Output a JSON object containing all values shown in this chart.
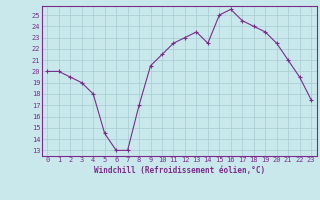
{
  "x": [
    0,
    1,
    2,
    3,
    4,
    5,
    6,
    7,
    8,
    9,
    10,
    11,
    12,
    13,
    14,
    15,
    16,
    17,
    18,
    19,
    20,
    21,
    22,
    23
  ],
  "y": [
    20,
    20,
    19.5,
    19,
    18,
    14.5,
    13,
    13,
    17,
    20.5,
    21.5,
    22.5,
    23,
    23.5,
    22.5,
    25,
    25.5,
    24.5,
    24,
    23.5,
    22.5,
    21,
    19.5,
    17.5
  ],
  "line_color": "#7b2d8b",
  "marker": "+",
  "bg_color": "#c8e8ec",
  "grid_color": "#a8ccd4",
  "xlabel": "Windchill (Refroidissement éolien,°C)",
  "ylabel_ticks": [
    13,
    14,
    15,
    16,
    17,
    18,
    19,
    20,
    21,
    22,
    23,
    24,
    25
  ],
  "xlim": [
    -0.5,
    23.5
  ],
  "ylim": [
    12.5,
    25.8
  ],
  "xticks": [
    0,
    1,
    2,
    3,
    4,
    5,
    6,
    7,
    8,
    9,
    10,
    11,
    12,
    13,
    14,
    15,
    16,
    17,
    18,
    19,
    20,
    21,
    22,
    23
  ]
}
